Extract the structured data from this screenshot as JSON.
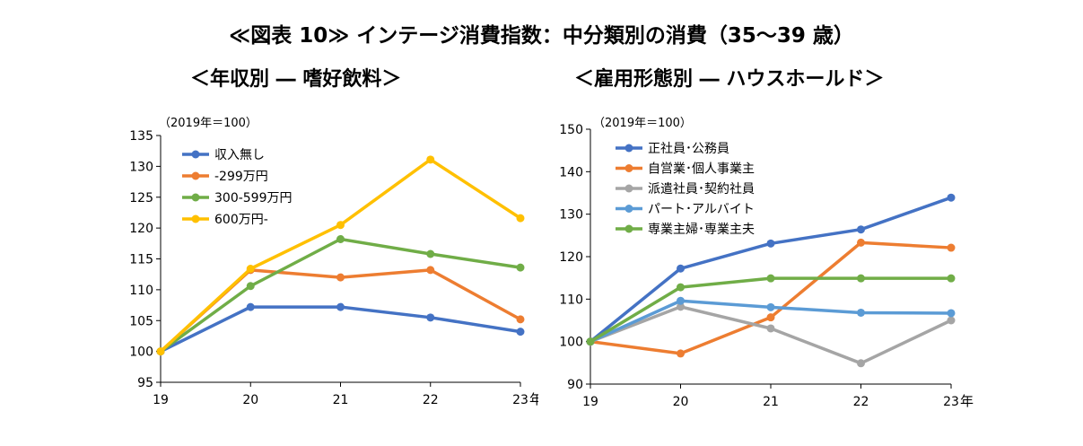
{
  "figure": {
    "title": "≪図表 10≫ インテージ消費指数：中分類別の消費（35～39 歳）"
  },
  "chart_data": [
    {
      "type": "line",
      "subtitle": "＜年収別 ― 嗜好飲料＞",
      "unit_note": "（2019年＝100）",
      "x": [
        "19",
        "20",
        "21",
        "22",
        "23"
      ],
      "x_suffix": "年",
      "ylim": [
        95,
        135
      ],
      "yticks": [
        95,
        100,
        105,
        110,
        115,
        120,
        125,
        130,
        135
      ],
      "grid": false,
      "legend_position": "top-left",
      "series": [
        {
          "name": "収入無し",
          "color": "#4472C4",
          "values": [
            100,
            107.2,
            107.2,
            105.5,
            103.2
          ]
        },
        {
          "name": "-299万円",
          "color": "#ED7D31",
          "values": [
            100,
            113.2,
            112.0,
            113.2,
            105.2
          ]
        },
        {
          "name": "300-599万円",
          "color": "#70AD47",
          "values": [
            100,
            110.6,
            118.2,
            115.8,
            113.6
          ]
        },
        {
          "name": "600万円-",
          "color": "#FFC000",
          "values": [
            100,
            113.4,
            120.5,
            131.1,
            121.6
          ]
        }
      ]
    },
    {
      "type": "line",
      "subtitle": "＜雇用形態別 ― ハウスホールド＞",
      "unit_note": "（2019年＝100）",
      "x": [
        "19",
        "20",
        "21",
        "22",
        "23"
      ],
      "x_suffix": "年",
      "ylim": [
        90,
        150
      ],
      "yticks": [
        90,
        100,
        110,
        120,
        130,
        140,
        150
      ],
      "grid": false,
      "legend_position": "top-left",
      "series": [
        {
          "name": "正社員･公務員",
          "color": "#4472C4",
          "values": [
            100,
            117.2,
            123.1,
            126.4,
            133.9
          ]
        },
        {
          "name": "自営業･個人事業主",
          "color": "#ED7D31",
          "values": [
            100,
            97.2,
            105.7,
            123.3,
            122.1
          ]
        },
        {
          "name": "派遣社員･契約社員",
          "color": "#A5A5A5",
          "values": [
            100,
            108.2,
            103.1,
            94.9,
            105.0
          ]
        },
        {
          "name": "パート･アルバイト",
          "color": "#5B9BD5",
          "values": [
            100,
            109.6,
            108.1,
            106.8,
            106.7
          ]
        },
        {
          "name": "専業主婦･専業主夫",
          "color": "#70AD47",
          "values": [
            100,
            112.8,
            114.9,
            114.9,
            114.9
          ]
        }
      ]
    }
  ]
}
